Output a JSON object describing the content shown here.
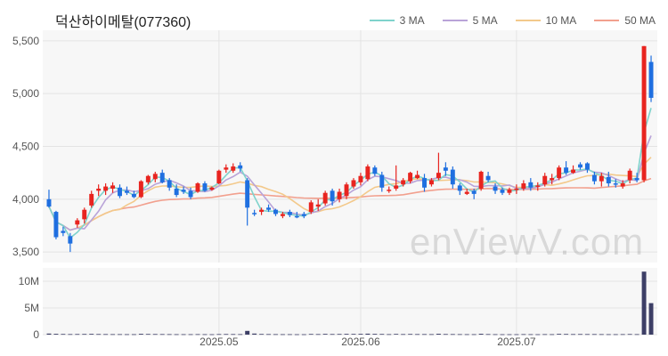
{
  "chart_data": {
    "type": "candlestick",
    "title": "덕산하이메탈(077360)",
    "watermark": "enViewV.com",
    "x_tick_labels": [
      {
        "label": "2025.05",
        "index": 24
      },
      {
        "label": "2025.06",
        "index": 44
      },
      {
        "label": "2025.07",
        "index": 66
      }
    ],
    "price_axis": {
      "ylim": [
        3400,
        5600
      ],
      "ticks": [
        "3,500",
        "4,000",
        "4,500",
        "5,000",
        "5,500"
      ],
      "tick_values": [
        3500,
        4000,
        4500,
        5000,
        5500
      ]
    },
    "volume_axis": {
      "ylim": [
        0,
        12500000
      ],
      "ticks": [
        "0",
        "5M",
        "10M"
      ],
      "tick_values": [
        0,
        5000000,
        10000000
      ]
    },
    "legend": [
      {
        "name": "3 MA",
        "color": "#7fd3cc"
      },
      {
        "name": "5 MA",
        "color": "#b9a3d8"
      },
      {
        "name": "10 MA",
        "color": "#f3c98b"
      },
      {
        "name": "50 MA",
        "color": "#f2a08e"
      }
    ],
    "colors": {
      "up": "#e8241f",
      "down": "#1f6fe0",
      "volume": "#3d3f66"
    },
    "candles": [
      [
        4000,
        4090,
        3920,
        3930
      ],
      [
        3880,
        3890,
        3620,
        3640
      ],
      [
        3700,
        3740,
        3650,
        3680
      ],
      [
        3650,
        3680,
        3500,
        3580
      ],
      [
        3760,
        3820,
        3730,
        3800
      ],
      [
        3810,
        3920,
        3770,
        3900
      ],
      [
        3940,
        4080,
        3920,
        4050
      ],
      [
        4080,
        4140,
        4030,
        4100
      ],
      [
        4080,
        4150,
        4040,
        4120
      ],
      [
        4100,
        4160,
        4060,
        4130
      ],
      [
        4110,
        4140,
        4010,
        4030
      ],
      [
        4080,
        4120,
        4040,
        4060
      ],
      [
        4050,
        4080,
        4010,
        4020
      ],
      [
        4020,
        4180,
        4010,
        4170
      ],
      [
        4160,
        4230,
        4140,
        4220
      ],
      [
        4190,
        4260,
        4160,
        4240
      ],
      [
        4250,
        4280,
        4150,
        4160
      ],
      [
        4180,
        4200,
        4080,
        4110
      ],
      [
        4100,
        4140,
        4020,
        4040
      ],
      [
        4090,
        4120,
        4050,
        4070
      ],
      [
        4080,
        4110,
        4000,
        4020
      ],
      [
        4070,
        4160,
        4060,
        4150
      ],
      [
        4150,
        4170,
        4070,
        4080
      ],
      [
        4090,
        4120,
        4080,
        4110
      ],
      [
        4150,
        4280,
        4140,
        4270
      ],
      [
        4280,
        4330,
        4250,
        4300
      ],
      [
        4270,
        4340,
        4250,
        4310
      ],
      [
        4320,
        4350,
        4260,
        4290
      ],
      [
        4180,
        4200,
        3750,
        3920
      ],
      [
        3870,
        3900,
        3840,
        3860
      ],
      [
        3880,
        3920,
        3850,
        3900
      ],
      [
        3920,
        3950,
        3880,
        3900
      ],
      [
        3900,
        3910,
        3840,
        3860
      ],
      [
        3840,
        3880,
        3820,
        3860
      ],
      [
        3880,
        3900,
        3830,
        3850
      ],
      [
        3840,
        3880,
        3820,
        3830
      ],
      [
        3860,
        3880,
        3820,
        3840
      ],
      [
        3880,
        3990,
        3860,
        3970
      ],
      [
        3930,
        4000,
        3890,
        3950
      ],
      [
        3960,
        4080,
        3940,
        4060
      ],
      [
        4080,
        4100,
        3940,
        3980
      ],
      [
        4000,
        4100,
        3970,
        4070
      ],
      [
        4030,
        4160,
        4000,
        4140
      ],
      [
        4120,
        4200,
        4100,
        4180
      ],
      [
        4160,
        4250,
        4130,
        4220
      ],
      [
        4190,
        4330,
        4170,
        4310
      ],
      [
        4300,
        4320,
        4220,
        4240
      ],
      [
        4230,
        4260,
        4070,
        4110
      ],
      [
        4080,
        4120,
        4060,
        4090
      ],
      [
        4100,
        4320,
        4080,
        4130
      ],
      [
        4140,
        4200,
        4120,
        4180
      ],
      [
        4170,
        4260,
        4150,
        4250
      ],
      [
        4200,
        4270,
        4190,
        4230
      ],
      [
        4200,
        4240,
        4070,
        4110
      ],
      [
        4140,
        4200,
        4120,
        4180
      ],
      [
        4200,
        4440,
        4180,
        4250
      ],
      [
        4300,
        4350,
        4220,
        4270
      ],
      [
        4280,
        4310,
        4100,
        4140
      ],
      [
        4130,
        4150,
        4040,
        4080
      ],
      [
        4050,
        4100,
        4040,
        4070
      ],
      [
        4080,
        4100,
        4000,
        4050
      ],
      [
        4100,
        4270,
        4080,
        4260
      ],
      [
        4220,
        4260,
        4160,
        4180
      ],
      [
        4120,
        4150,
        4050,
        4080
      ],
      [
        4090,
        4110,
        4040,
        4060
      ],
      [
        4060,
        4110,
        4040,
        4090
      ],
      [
        4090,
        4140,
        4050,
        4100
      ],
      [
        4100,
        4180,
        4080,
        4150
      ],
      [
        4160,
        4200,
        4080,
        4110
      ],
      [
        4120,
        4160,
        4080,
        4130
      ],
      [
        4140,
        4250,
        4120,
        4220
      ],
      [
        4180,
        4240,
        4140,
        4200
      ],
      [
        4200,
        4320,
        4180,
        4300
      ],
      [
        4300,
        4360,
        4230,
        4250
      ],
      [
        4250,
        4320,
        4240,
        4280
      ],
      [
        4330,
        4350,
        4280,
        4300
      ],
      [
        4340,
        4350,
        4250,
        4280
      ],
      [
        4230,
        4260,
        4140,
        4170
      ],
      [
        4170,
        4250,
        4120,
        4220
      ],
      [
        4210,
        4260,
        4120,
        4150
      ],
      [
        4150,
        4190,
        4110,
        4140
      ],
      [
        4120,
        4180,
        4100,
        4150
      ],
      [
        4180,
        4290,
        4150,
        4270
      ],
      [
        4200,
        4250,
        4160,
        4180
      ],
      [
        4180,
        5450,
        4160,
        5450
      ],
      [
        5300,
        5360,
        4920,
        4960
      ]
    ],
    "volume": [
      200000,
      150000,
      120000,
      100000,
      110000,
      120000,
      140000,
      110000,
      100000,
      90000,
      90000,
      80000,
      80000,
      150000,
      120000,
      110000,
      100000,
      90000,
      80000,
      80000,
      80000,
      90000,
      80000,
      70000,
      100000,
      110000,
      100000,
      90000,
      700000,
      200000,
      120000,
      100000,
      90000,
      80000,
      80000,
      70000,
      70000,
      120000,
      100000,
      140000,
      110000,
      120000,
      140000,
      130000,
      140000,
      180000,
      140000,
      120000,
      90000,
      130000,
      100000,
      120000,
      100000,
      100000,
      90000,
      160000,
      110000,
      100000,
      90000,
      80000,
      80000,
      160000,
      100000,
      80000,
      70000,
      70000,
      70000,
      90000,
      80000,
      70000,
      90000,
      80000,
      140000,
      120000,
      100000,
      110000,
      100000,
      100000,
      90000,
      80000,
      80000,
      90000,
      110000,
      90000,
      11800000,
      5900000
    ]
  }
}
